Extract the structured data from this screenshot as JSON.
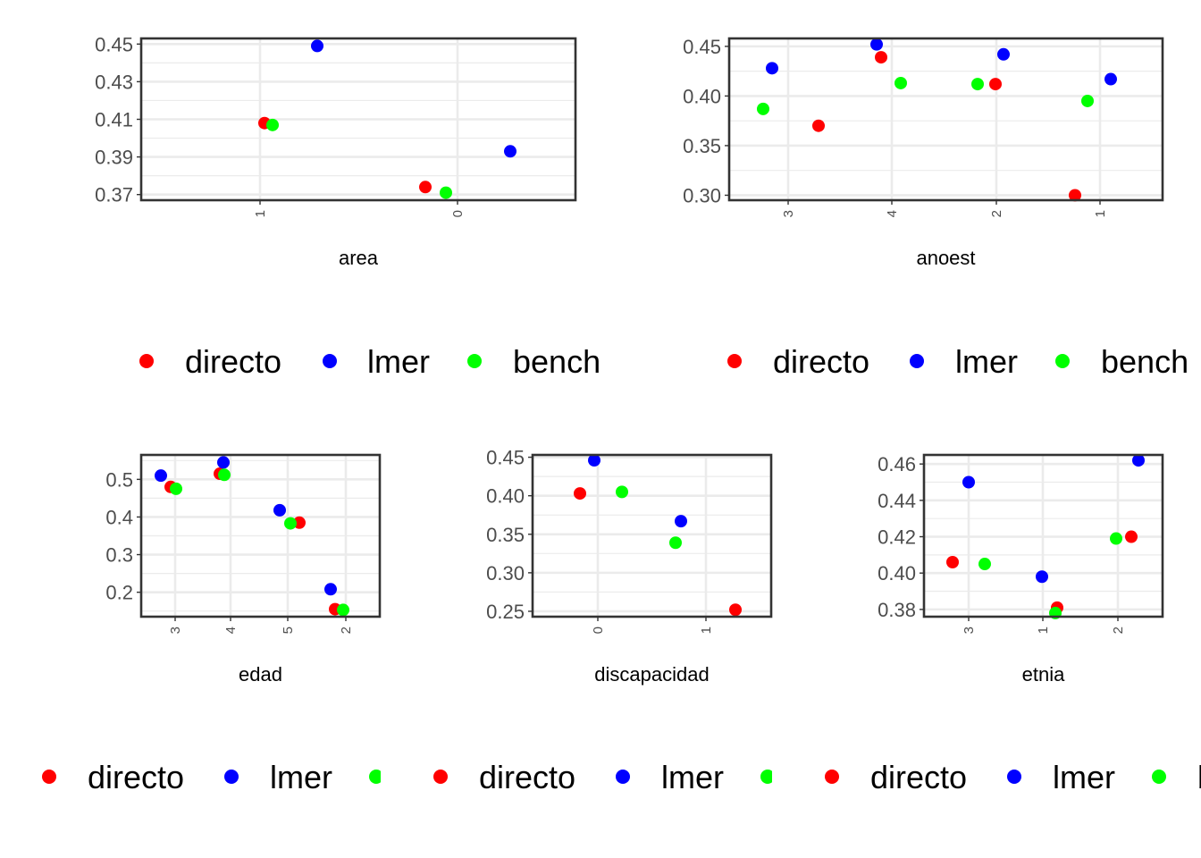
{
  "colors": {
    "directo": "#ff0000",
    "lmer": "#0000ff",
    "bench": "#00ff00"
  },
  "legend": {
    "items": [
      "directo",
      "lmer",
      "bench"
    ]
  },
  "chart_data": [
    {
      "type": "scatter",
      "xlabel": "area",
      "categories": [
        "1",
        "0"
      ],
      "ylim": [
        0.367,
        0.453
      ],
      "yticks": [
        "0.37",
        "0.39",
        "0.41",
        "0.43",
        "0.45"
      ],
      "grid": true,
      "legend_position": "bottom",
      "series": [
        {
          "name": "directo",
          "points": [
            [
              "1",
              0.408
            ],
            [
              "0",
              0.374
            ]
          ]
        },
        {
          "name": "lmer",
          "points": [
            [
              "1",
              0.449
            ],
            [
              "0",
              0.393
            ]
          ]
        },
        {
          "name": "bench",
          "points": [
            [
              "1",
              0.407
            ],
            [
              "0",
              0.371
            ]
          ]
        }
      ]
    },
    {
      "type": "scatter",
      "xlabel": "anoest",
      "categories": [
        "3",
        "4",
        "2",
        "1"
      ],
      "ylim": [
        0.295,
        0.458
      ],
      "yticks": [
        "0.30",
        "0.35",
        "0.40",
        "0.45"
      ],
      "grid": true,
      "legend_position": "bottom",
      "series": [
        {
          "name": "directo",
          "points": [
            [
              "3",
              0.37
            ],
            [
              "4",
              0.439
            ],
            [
              "2",
              0.412
            ],
            [
              "1",
              0.3
            ]
          ]
        },
        {
          "name": "lmer",
          "points": [
            [
              "3",
              0.428
            ],
            [
              "4",
              0.452
            ],
            [
              "2",
              0.442
            ],
            [
              "1",
              0.417
            ]
          ]
        },
        {
          "name": "bench",
          "points": [
            [
              "3",
              0.387
            ],
            [
              "4",
              0.413
            ],
            [
              "2",
              0.412
            ],
            [
              "1",
              0.395
            ]
          ]
        }
      ]
    },
    {
      "type": "scatter",
      "xlabel": "edad",
      "categories": [
        "3",
        "4",
        "5",
        "2"
      ],
      "ylim": [
        0.135,
        0.565
      ],
      "yticks": [
        "0.2",
        "0.3",
        "0.4",
        "0.5"
      ],
      "grid": true,
      "legend_position": "bottom",
      "series": [
        {
          "name": "directo",
          "points": [
            [
              "3",
              0.48
            ],
            [
              "4",
              0.515
            ],
            [
              "5",
              0.385
            ],
            [
              "2",
              0.155
            ]
          ]
        },
        {
          "name": "lmer",
          "points": [
            [
              "3",
              0.51
            ],
            [
              "4",
              0.545
            ],
            [
              "5",
              0.418
            ],
            [
              "2",
              0.208
            ]
          ]
        },
        {
          "name": "bench",
          "points": [
            [
              "3",
              0.475
            ],
            [
              "4",
              0.512
            ],
            [
              "5",
              0.383
            ],
            [
              "2",
              0.153
            ]
          ]
        }
      ]
    },
    {
      "type": "scatter",
      "xlabel": "discapacidad",
      "categories": [
        "0",
        "1"
      ],
      "ylim": [
        0.243,
        0.453
      ],
      "yticks": [
        "0.25",
        "0.30",
        "0.35",
        "0.40",
        "0.45"
      ],
      "grid": true,
      "legend_position": "bottom",
      "series": [
        {
          "name": "directo",
          "points": [
            [
              "0",
              0.403
            ],
            [
              "1",
              0.252
            ]
          ]
        },
        {
          "name": "lmer",
          "points": [
            [
              "0",
              0.446
            ],
            [
              "1",
              0.367
            ]
          ]
        },
        {
          "name": "bench",
          "points": [
            [
              "0",
              0.405
            ],
            [
              "1",
              0.339
            ]
          ]
        }
      ]
    },
    {
      "type": "scatter",
      "xlabel": "etnia",
      "categories": [
        "3",
        "1",
        "2"
      ],
      "ylim": [
        0.376,
        0.465
      ],
      "yticks": [
        "0.38",
        "0.40",
        "0.42",
        "0.44",
        "0.46"
      ],
      "grid": true,
      "legend_position": "bottom",
      "series": [
        {
          "name": "directo",
          "points": [
            [
              "3",
              0.406
            ],
            [
              "1",
              0.381
            ],
            [
              "2",
              0.42
            ]
          ]
        },
        {
          "name": "lmer",
          "points": [
            [
              "3",
              0.45
            ],
            [
              "1",
              0.398
            ],
            [
              "2",
              0.462
            ]
          ]
        },
        {
          "name": "bench",
          "points": [
            [
              "3",
              0.405
            ],
            [
              "1",
              0.378
            ],
            [
              "2",
              0.419
            ]
          ]
        }
      ]
    }
  ]
}
